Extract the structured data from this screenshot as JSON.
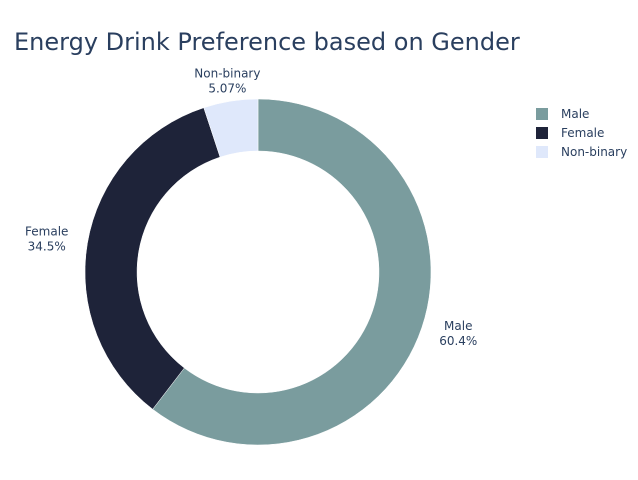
{
  "chart_data": {
    "type": "pie",
    "hole": true,
    "title": "Energy Drink Preference based on Gender",
    "categories": [
      "Male",
      "Female",
      "Non-binary"
    ],
    "values": [
      60.4,
      34.5,
      5.07
    ],
    "percent_labels": [
      "60.4%",
      "34.5%",
      "5.07%"
    ],
    "colors": [
      "#7a9c9e",
      "#1e2339",
      "#dfe8fb"
    ],
    "legend": {
      "position": "top-right",
      "entries": [
        "Male",
        "Female",
        "Non-binary"
      ]
    }
  }
}
